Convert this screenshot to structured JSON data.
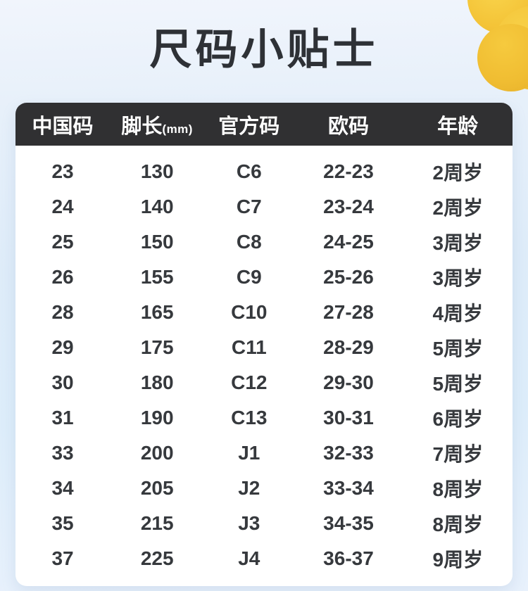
{
  "page": {
    "title": "尺码小贴士"
  },
  "colors": {
    "background_top": "#f1f5fc",
    "background_mid": "#deecf9",
    "background_bottom": "#e8f1fc",
    "header_bar": "#303032",
    "header_text": "#ffffff",
    "body_text": "#36393d",
    "title_text": "#2e3136",
    "panel": "#ffffff",
    "decoration_yellow": "#f3c236"
  },
  "decoration": {
    "name": "yellow-flower-corner"
  },
  "table": {
    "header_cells": [
      {
        "label": "中国码",
        "unit": ""
      },
      {
        "label": "脚长",
        "unit": "(mm)"
      },
      {
        "label": "官方码",
        "unit": ""
      },
      {
        "label": "欧码",
        "unit": ""
      },
      {
        "label": "年龄",
        "unit": ""
      }
    ]
  },
  "chart_data": {
    "type": "table",
    "title": "尺码小贴士",
    "columns": [
      "中国码",
      "脚长(mm)",
      "官方码",
      "欧码",
      "年龄"
    ],
    "rows": [
      [
        "23",
        "130",
        "C6",
        "22-23",
        "2周岁"
      ],
      [
        "24",
        "140",
        "C7",
        "23-24",
        "2周岁"
      ],
      [
        "25",
        "150",
        "C8",
        "24-25",
        "3周岁"
      ],
      [
        "26",
        "155",
        "C9",
        "25-26",
        "3周岁"
      ],
      [
        "28",
        "165",
        "C10",
        "27-28",
        "4周岁"
      ],
      [
        "29",
        "175",
        "C11",
        "28-29",
        "5周岁"
      ],
      [
        "30",
        "180",
        "C12",
        "29-30",
        "5周岁"
      ],
      [
        "31",
        "190",
        "C13",
        "30-31",
        "6周岁"
      ],
      [
        "33",
        "200",
        "J1",
        "32-33",
        "7周岁"
      ],
      [
        "34",
        "205",
        "J2",
        "33-34",
        "8周岁"
      ],
      [
        "35",
        "215",
        "J3",
        "34-35",
        "8周岁"
      ],
      [
        "37",
        "225",
        "J4",
        "36-37",
        "9周岁"
      ]
    ]
  }
}
